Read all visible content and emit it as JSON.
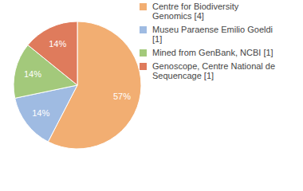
{
  "chart_data": {
    "type": "pie",
    "categories": [
      "Centre for Biodiversity Genomics [4]",
      "Museu Paraense Emilio Goeldi [1]",
      "Mined from GenBank, NCBI [1]",
      "Genoscope, Centre National de Sequencage [1]"
    ],
    "values": [
      57,
      14,
      14,
      14
    ],
    "value_labels": [
      "57%",
      "14%",
      "14%",
      "14%"
    ],
    "colors": [
      "#f2ae72",
      "#9fbbe2",
      "#a3c97b",
      "#df7b5c"
    ],
    "data_labels": true,
    "legend": "right"
  }
}
